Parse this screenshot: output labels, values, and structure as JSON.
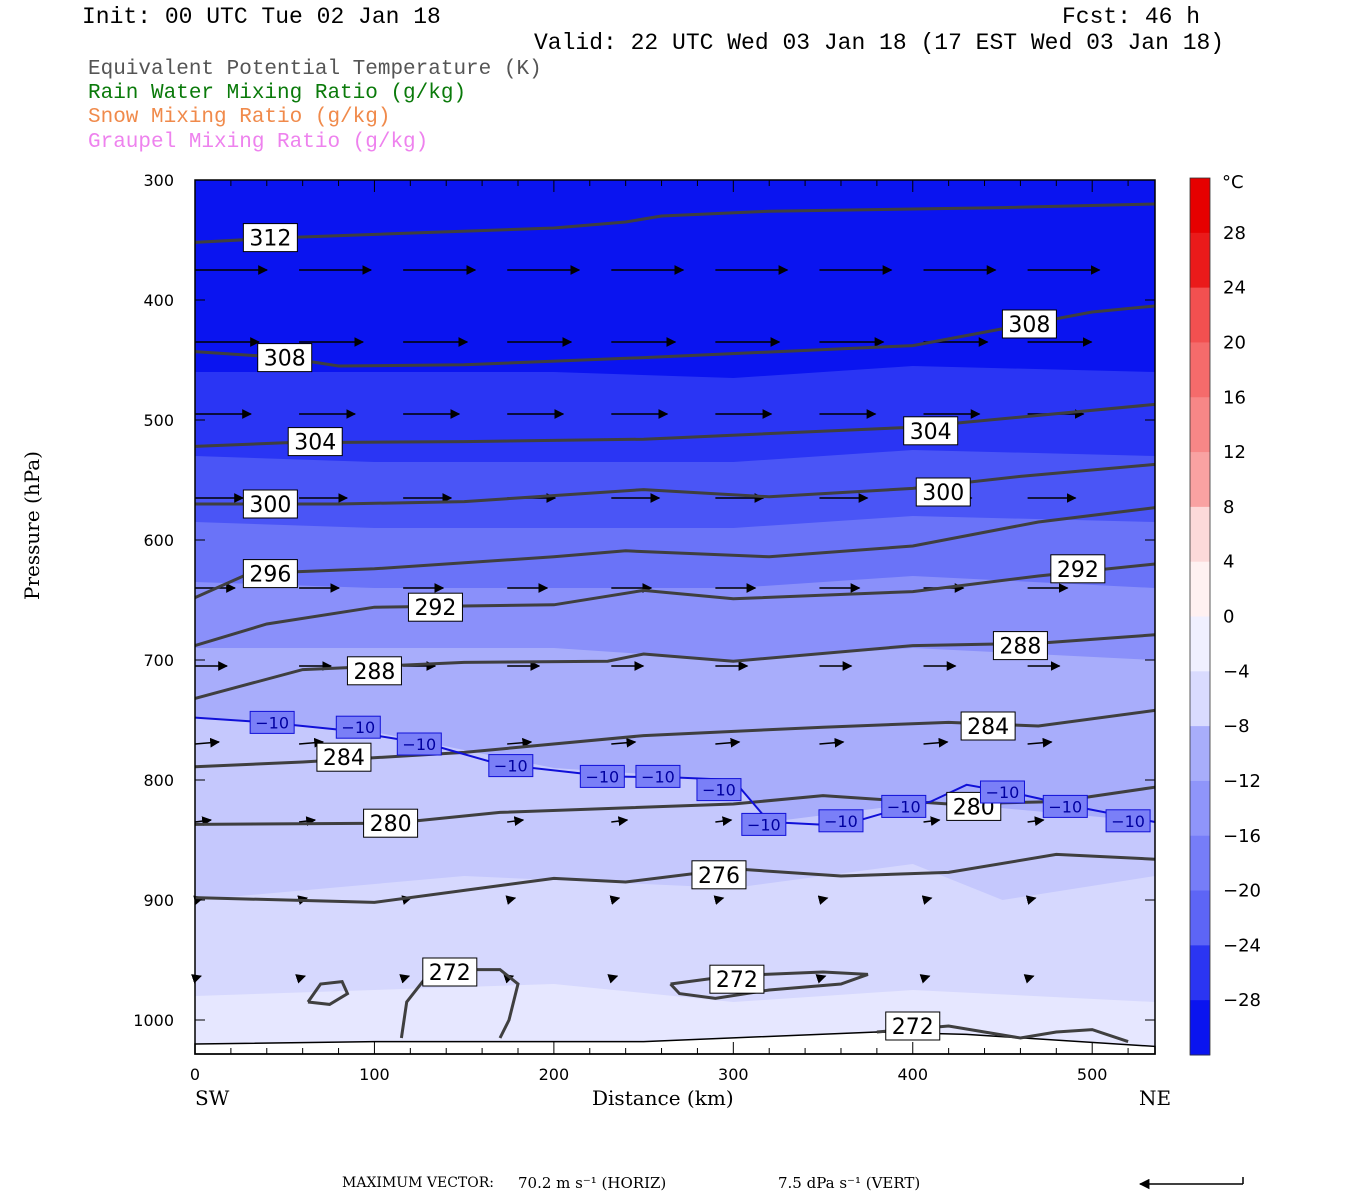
{
  "header": {
    "init": "Init: 00 UTC Tue 02 Jan 18",
    "fcst": "Fcst:  46 h",
    "valid": "Valid: 22 UTC Wed 03 Jan 18 (17 EST Wed 03 Jan 18)"
  },
  "legend": [
    {
      "label": "Equivalent Potential Temperature (K)",
      "color": "#555555"
    },
    {
      "label": "Rain Water Mixing Ratio (g/kg)",
      "color": "#0a7a0a"
    },
    {
      "label": "Snow Mixing Ratio (g/kg)",
      "color": "#f08a4b"
    },
    {
      "label": "Graupel Mixing Ratio (g/kg)",
      "color": "#ee82ee"
    }
  ],
  "axes": {
    "ylabel": "Pressure (hPa)",
    "xlabel": "Distance (km)",
    "left_end": "SW",
    "right_end": "NE"
  },
  "colorbar": {
    "unit": "°C",
    "ticks": [
      "28",
      "24",
      "20",
      "16",
      "12",
      "8",
      "4",
      "0",
      "−4",
      "−8",
      "−12",
      "−16",
      "−20",
      "−24",
      "−28"
    ]
  },
  "footer": {
    "max_vector_label": "MAXIMUM VECTOR:",
    "horiz": "70.2 m s⁻¹ (HORIZ)",
    "vert": "7.5 dPa s⁻¹ (VERT)"
  },
  "chart_data": {
    "type": "contour cross-section",
    "x": {
      "label": "Distance (km)",
      "range": [
        0,
        535
      ],
      "ticks": [
        0,
        100,
        200,
        300,
        400,
        500
      ]
    },
    "y": {
      "label": "Pressure (hPa)",
      "range": [
        1030,
        300
      ],
      "ticks": [
        300,
        400,
        500,
        600,
        700,
        800,
        900,
        1000
      ]
    },
    "theta_e_contours": [
      {
        "value": 312,
        "points": [
          [
            0,
            352
          ],
          [
            50,
            348
          ],
          [
            200,
            340
          ],
          [
            240,
            335
          ],
          [
            260,
            330
          ],
          [
            320,
            326
          ],
          [
            450,
            323
          ],
          [
            535,
            320
          ]
        ]
      },
      {
        "value": 308,
        "points": [
          [
            0,
            443
          ],
          [
            50,
            448
          ],
          [
            80,
            455
          ],
          [
            150,
            454
          ],
          [
            250,
            448
          ],
          [
            400,
            438
          ],
          [
            500,
            410
          ],
          [
            535,
            405
          ]
        ]
      },
      {
        "value": 304,
        "points": [
          [
            0,
            522
          ],
          [
            50,
            519
          ],
          [
            150,
            518
          ],
          [
            250,
            516
          ],
          [
            400,
            506
          ],
          [
            535,
            487
          ]
        ]
      },
      {
        "value": 300,
        "points": [
          [
            0,
            570
          ],
          [
            80,
            570
          ],
          [
            150,
            568
          ],
          [
            250,
            558
          ],
          [
            320,
            564
          ],
          [
            400,
            557
          ],
          [
            460,
            547
          ],
          [
            535,
            537
          ]
        ]
      },
      {
        "value": 296,
        "points": [
          [
            0,
            648
          ],
          [
            30,
            628
          ],
          [
            100,
            624
          ],
          [
            200,
            614
          ],
          [
            240,
            609
          ],
          [
            320,
            614
          ],
          [
            400,
            605
          ],
          [
            470,
            585
          ],
          [
            535,
            573
          ]
        ]
      },
      {
        "value": 292,
        "points": [
          [
            0,
            688
          ],
          [
            40,
            670
          ],
          [
            100,
            656
          ],
          [
            200,
            654
          ],
          [
            250,
            642
          ],
          [
            300,
            649
          ],
          [
            400,
            643
          ],
          [
            470,
            630
          ],
          [
            535,
            620
          ]
        ]
      },
      {
        "value": 288,
        "points": [
          [
            0,
            732
          ],
          [
            60,
            708
          ],
          [
            150,
            702
          ],
          [
            230,
            701
          ],
          [
            250,
            695
          ],
          [
            300,
            701
          ],
          [
            400,
            688
          ],
          [
            470,
            686
          ],
          [
            535,
            679
          ]
        ]
      },
      {
        "value": 284,
        "points": [
          [
            0,
            789
          ],
          [
            60,
            785
          ],
          [
            150,
            777
          ],
          [
            250,
            763
          ],
          [
            350,
            756
          ],
          [
            420,
            752
          ],
          [
            470,
            755
          ],
          [
            535,
            742
          ]
        ]
      },
      {
        "value": 280,
        "points": [
          [
            0,
            837
          ],
          [
            110,
            836
          ],
          [
            170,
            827
          ],
          [
            300,
            820
          ],
          [
            350,
            813
          ],
          [
            420,
            820
          ],
          [
            480,
            818
          ],
          [
            535,
            806
          ]
        ]
      },
      {
        "value": 276,
        "points": [
          [
            0,
            898
          ],
          [
            100,
            902
          ],
          [
            150,
            892
          ],
          [
            200,
            882
          ],
          [
            240,
            885
          ],
          [
            300,
            874
          ],
          [
            360,
            880
          ],
          [
            420,
            877
          ],
          [
            480,
            862
          ],
          [
            535,
            866
          ]
        ]
      },
      {
        "value": 272,
        "points": [
          [
            115,
            1015
          ],
          [
            118,
            985
          ],
          [
            130,
            962
          ],
          [
            150,
            958
          ],
          [
            170,
            958
          ],
          [
            180,
            970
          ],
          [
            175,
            1000
          ],
          [
            170,
            1015
          ]
        ]
      },
      {
        "value": 272,
        "points": [
          [
            265,
            970
          ],
          [
            300,
            963
          ],
          [
            350,
            960
          ],
          [
            375,
            962
          ],
          [
            360,
            970
          ],
          [
            320,
            975
          ],
          [
            290,
            982
          ],
          [
            270,
            978
          ],
          [
            265,
            970
          ]
        ]
      },
      {
        "value": 272,
        "points": [
          [
            63,
            985
          ],
          [
            70,
            970
          ],
          [
            82,
            968
          ],
          [
            85,
            978
          ],
          [
            75,
            987
          ],
          [
            63,
            985
          ]
        ]
      },
      {
        "value": 272,
        "points": [
          [
            380,
            1010
          ],
          [
            420,
            1005
          ],
          [
            460,
            1015
          ],
          [
            480,
            1010
          ],
          [
            500,
            1008
          ],
          [
            520,
            1018
          ]
        ]
      }
    ],
    "contour_labels": [
      {
        "value": "312",
        "x": 42,
        "p": 348
      },
      {
        "value": "308",
        "x": 50,
        "p": 448
      },
      {
        "value": "308",
        "x": 465,
        "p": 420
      },
      {
        "value": "304",
        "x": 67,
        "p": 518
      },
      {
        "value": "304",
        "x": 410,
        "p": 509
      },
      {
        "value": "300",
        "x": 42,
        "p": 570
      },
      {
        "value": "300",
        "x": 417,
        "p": 560
      },
      {
        "value": "296",
        "x": 42,
        "p": 628
      },
      {
        "value": "292",
        "x": 134,
        "p": 656
      },
      {
        "value": "292",
        "x": 492,
        "p": 624
      },
      {
        "value": "288",
        "x": 100,
        "p": 709
      },
      {
        "value": "288",
        "x": 460,
        "p": 688
      },
      {
        "value": "284",
        "x": 83,
        "p": 781
      },
      {
        "value": "284",
        "x": 442,
        "p": 755
      },
      {
        "value": "280",
        "x": 109,
        "p": 836
      },
      {
        "value": "280",
        "x": 434,
        "p": 822
      },
      {
        "value": "276",
        "x": 292,
        "p": 879
      },
      {
        "value": "272",
        "x": 142,
        "p": 960
      },
      {
        "value": "272",
        "x": 302,
        "p": 966
      },
      {
        "value": "272",
        "x": 400,
        "p": 1005
      }
    ],
    "isotherm_minus10": {
      "value": "−10",
      "points": [
        [
          0,
          748
        ],
        [
          40,
          752
        ],
        [
          80,
          758
        ],
        [
          130,
          770
        ],
        [
          170,
          787
        ],
        [
          230,
          797
        ],
        [
          270,
          798
        ],
        [
          300,
          800
        ],
        [
          320,
          835
        ],
        [
          360,
          838
        ],
        [
          390,
          825
        ],
        [
          410,
          818
        ],
        [
          430,
          804
        ],
        [
          460,
          812
        ],
        [
          490,
          822
        ],
        [
          535,
          835
        ]
      ],
      "labels": [
        [
          43,
          752
        ],
        [
          91,
          756
        ],
        [
          125,
          770
        ],
        [
          176,
          788
        ],
        [
          227,
          797
        ],
        [
          258,
          797
        ],
        [
          292,
          808
        ],
        [
          317,
          837
        ],
        [
          360,
          834
        ],
        [
          395,
          822
        ],
        [
          450,
          810
        ],
        [
          485,
          822
        ],
        [
          520,
          834
        ]
      ]
    },
    "temperature_bands_C": {
      "levels": [
        -10,
        -14,
        -18,
        -22,
        -26,
        -30
      ],
      "boundaries": [
        {
          "t": -10,
          "points": [
            [
              0,
              748
            ],
            [
              100,
              760
            ],
            [
              200,
              790
            ],
            [
              300,
              800
            ],
            [
              320,
              835
            ],
            [
              410,
              818
            ],
            [
              535,
              835
            ]
          ]
        },
        {
          "t": -14,
          "points": [
            [
              0,
              690
            ],
            [
              100,
              690
            ],
            [
              200,
              690
            ],
            [
              300,
              700
            ],
            [
              400,
              690
            ],
            [
              535,
              700
            ]
          ]
        },
        {
          "t": -18,
          "points": [
            [
              0,
              635
            ],
            [
              100,
              640
            ],
            [
              200,
              640
            ],
            [
              300,
              640
            ],
            [
              400,
              630
            ],
            [
              535,
              640
            ]
          ]
        },
        {
          "t": -22,
          "points": [
            [
              0,
              585
            ],
            [
              100,
              590
            ],
            [
              200,
              590
            ],
            [
              300,
              590
            ],
            [
              400,
              580
            ],
            [
              535,
              585
            ]
          ]
        },
        {
          "t": -26,
          "points": [
            [
              0,
              530
            ],
            [
              100,
              535
            ],
            [
              200,
              535
            ],
            [
              300,
              535
            ],
            [
              400,
              525
            ],
            [
              535,
              530
            ]
          ]
        },
        {
          "t": -30,
          "points": [
            [
              0,
              460
            ],
            [
              100,
              460
            ],
            [
              200,
              460
            ],
            [
              300,
              465
            ],
            [
              400,
              455
            ],
            [
              535,
              460
            ]
          ]
        }
      ]
    },
    "wind_vectors_levels_hPa": [
      375,
      435,
      495,
      565,
      640,
      705,
      770,
      835,
      900,
      965
    ]
  }
}
